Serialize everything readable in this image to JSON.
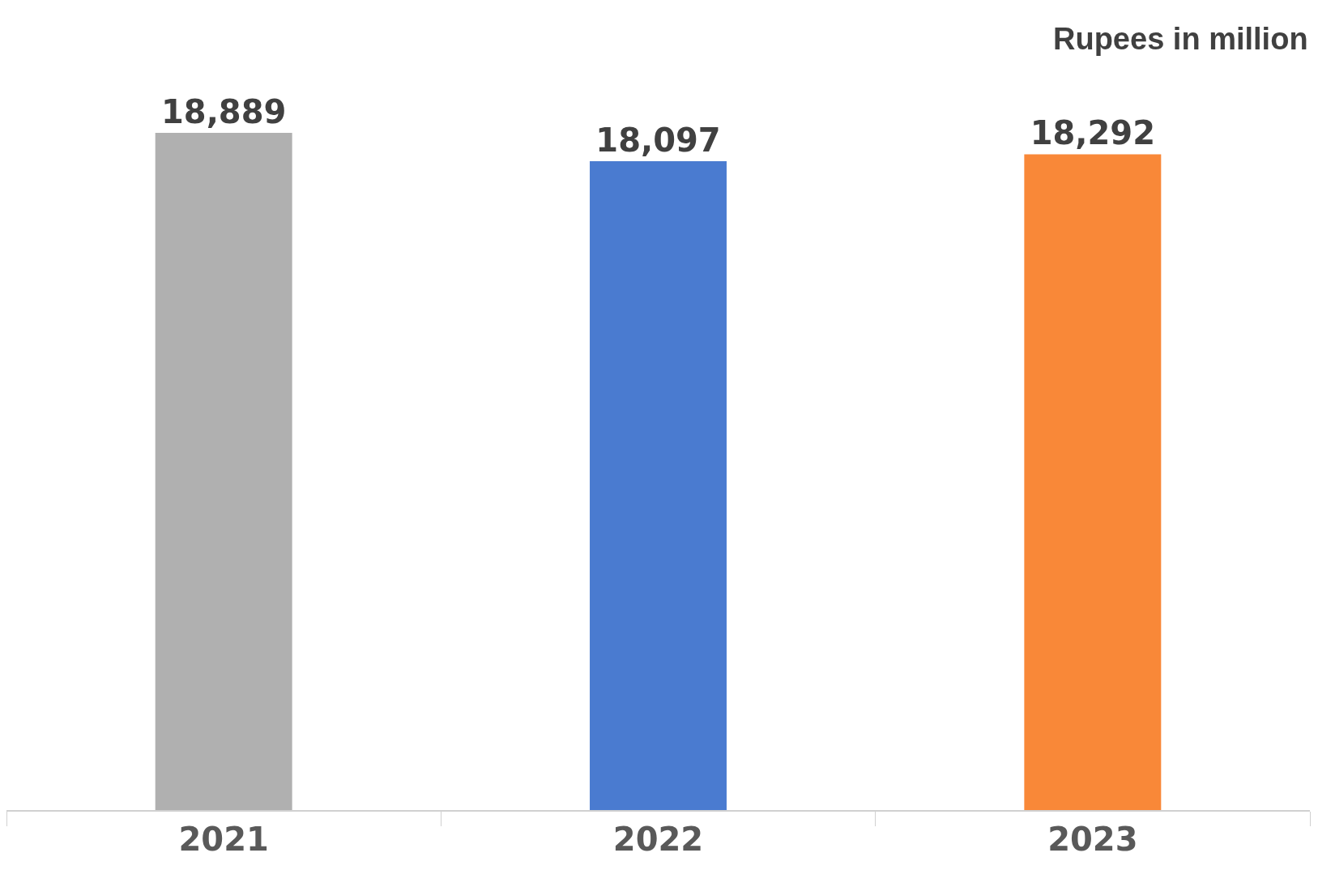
{
  "chart_data": {
    "type": "bar",
    "categories": [
      "2021",
      "2022",
      "2023"
    ],
    "values": [
      18889,
      18097,
      18292
    ],
    "colors": [
      "#b0b0b0",
      "#4a7bd0",
      "#f98838"
    ],
    "value_labels": [
      "18,889",
      "18,097",
      "18,292"
    ],
    "tick_labels": "x",
    "annotations": [
      "Rupees in million"
    ]
  }
}
